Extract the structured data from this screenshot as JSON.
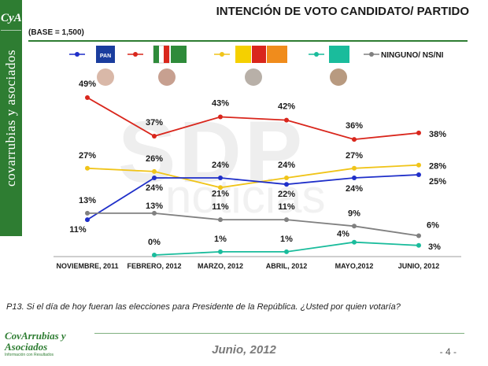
{
  "sidebar": {
    "brand": "covarrubias y asociados",
    "monogram": "CyA"
  },
  "title": "INTENCIÓN DE VOTO CANDIDATO/ PARTIDO",
  "base_note": "(BASE = 1,500)",
  "watermark": {
    "main": "SDP",
    "sub": "noticias"
  },
  "legend": {
    "pan": {
      "badge": "PAN",
      "color": "#1f2fc9"
    },
    "pri": {
      "badges": [
        "PRI",
        "PVEM"
      ],
      "color": "#d9261c"
    },
    "prd": {
      "badges": [
        "PRD",
        "PT",
        "MC"
      ],
      "color": "#f0c419"
    },
    "panal": {
      "badge": "nueva alianza",
      "color": "#1abc9c"
    },
    "ninguno": {
      "label": "NINGUNO/ NS/NI",
      "color": "#808080"
    }
  },
  "chart_data": {
    "type": "line",
    "categories": [
      "NOVIEMBRE, 2011",
      "FEBRERO, 2012",
      "MARZO, 2012",
      "ABRIL, 2012",
      "MAYO,2012",
      "JUNIO, 2012"
    ],
    "series": [
      {
        "id": "pri",
        "color": "#d9261c",
        "values": [
          49,
          37,
          43,
          42,
          36,
          38
        ],
        "labels": [
          "49%",
          "37%",
          "43%",
          "42%",
          "36%",
          "38%"
        ]
      },
      {
        "id": "prd",
        "color": "#f0c419",
        "values": [
          27,
          26,
          21,
          24,
          27,
          28
        ],
        "labels": [
          "27%",
          "26%",
          "21%",
          "24%",
          "27%",
          "28%"
        ]
      },
      {
        "id": "pan",
        "color": "#1f2fc9",
        "values": [
          11,
          24,
          24,
          22,
          24,
          25
        ],
        "labels": [
          "11%",
          "24%",
          "24%",
          "22%",
          "24%",
          "25%"
        ]
      },
      {
        "id": "ninguno",
        "color": "#808080",
        "values": [
          13,
          13,
          11,
          11,
          9,
          6
        ],
        "labels": [
          "13%",
          "13%",
          "11%",
          "11%",
          "9%",
          "6%"
        ]
      },
      {
        "id": "panal",
        "color": "#1abc9c",
        "values": [
          null,
          0,
          1,
          1,
          4,
          3
        ],
        "labels": [
          "",
          "0%",
          "1%",
          "1%",
          "4%",
          "3%"
        ]
      }
    ],
    "ylim": [
      0,
      50
    ]
  },
  "question": "P13. Si el día de hoy fueran las elecciones para Presidente de la República. ¿Usted por quien votaría?",
  "footer": {
    "date": "Junio, 2012",
    "page": "- 4 -",
    "logo_main": "CovArrubias y Asociados",
    "logo_sub": "Información con Resultados"
  }
}
